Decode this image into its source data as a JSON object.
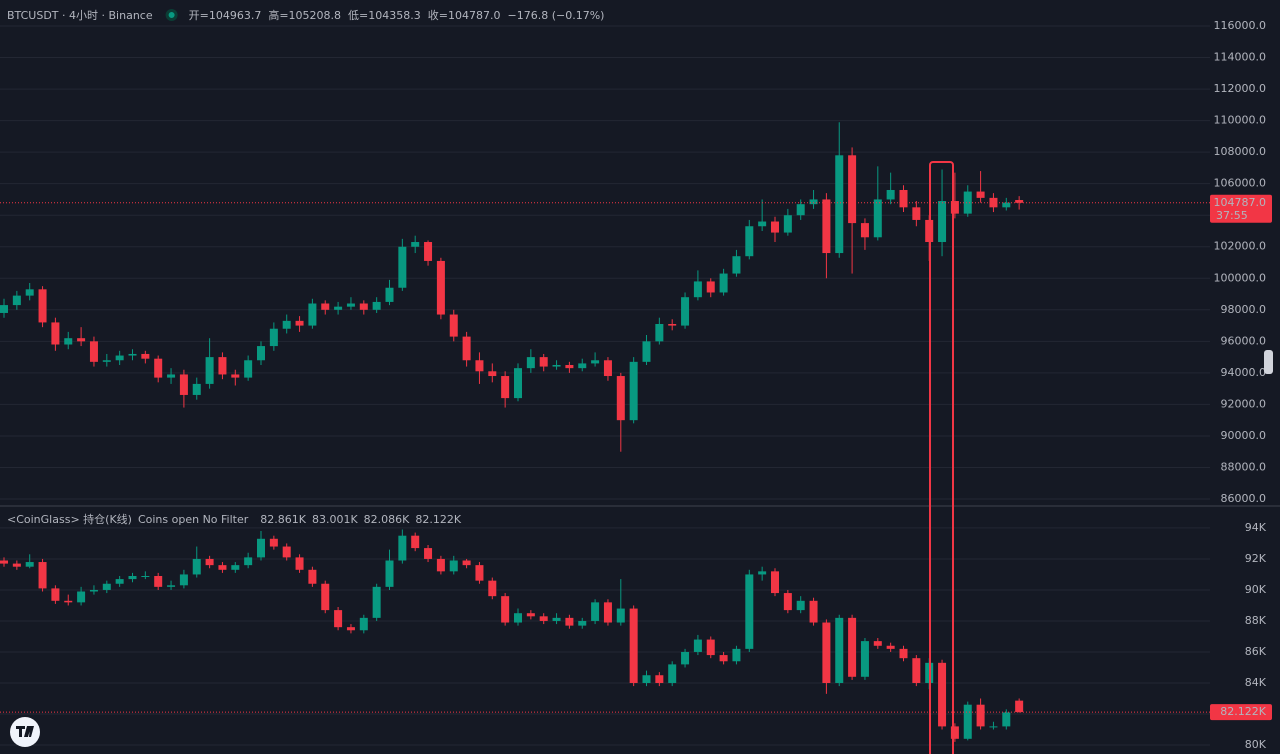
{
  "chart_data": [
    {
      "type": "candlestick",
      "title": "BTCUSDT · 4小时 · Binance",
      "header_labels": [
        "开=",
        "高=",
        "低=",
        "收="
      ],
      "header_values": [
        "104963.7",
        "105208.8",
        "104358.3",
        "104787.0"
      ],
      "change": "−176.8 (−0.17%)",
      "up_color": "#089981",
      "down_color": "#f23645",
      "ylim": [
        85620,
        117650
      ],
      "yticks": [
        {
          "value": 86000,
          "label": "86000.0"
        },
        {
          "value": 88000,
          "label": "88000.0"
        },
        {
          "value": 90000,
          "label": "90000.0"
        },
        {
          "value": 92000,
          "label": "92000.0"
        },
        {
          "value": 94000,
          "label": "94000.0"
        },
        {
          "value": 96000,
          "label": "96000.0"
        },
        {
          "value": 98000,
          "label": "98000.0"
        },
        {
          "value": 100000,
          "label": "100000.0"
        },
        {
          "value": 102000,
          "label": "102000.0"
        },
        {
          "value": 104000,
          "label": "104000.0"
        },
        {
          "value": 106000,
          "label": "106000.0"
        },
        {
          "value": 108000,
          "label": "108000.0"
        },
        {
          "value": 110000,
          "label": "110000.0"
        },
        {
          "value": 112000,
          "label": "112000.0"
        },
        {
          "value": 114000,
          "label": "114000.0"
        },
        {
          "value": 116000,
          "label": "116000.0"
        }
      ],
      "last_price": {
        "value": 104787.0,
        "label": "104787.0"
      },
      "countdown": "37:55",
      "candles": [
        [
          97800,
          98700,
          97500,
          98300
        ],
        [
          98300,
          99200,
          98000,
          98900
        ],
        [
          98900,
          99700,
          98600,
          99300
        ],
        [
          99300,
          99500,
          96900,
          97200
        ],
        [
          97200,
          97500,
          95400,
          95800
        ],
        [
          95800,
          96600,
          95500,
          96200
        ],
        [
          96200,
          96900,
          95700,
          96000
        ],
        [
          96000,
          96300,
          94400,
          94700
        ],
        [
          94700,
          95200,
          94400,
          94800
        ],
        [
          94800,
          95400,
          94500,
          95100
        ],
        [
          95100,
          95500,
          94800,
          95200
        ],
        [
          95200,
          95400,
          94600,
          94900
        ],
        [
          94900,
          95100,
          93400,
          93700
        ],
        [
          93700,
          94300,
          93300,
          93900
        ],
        [
          93900,
          94200,
          91800,
          92600
        ],
        [
          92600,
          93700,
          92300,
          93300
        ],
        [
          93300,
          96200,
          93000,
          95000
        ],
        [
          95000,
          95300,
          93600,
          93900
        ],
        [
          93900,
          94200,
          93200,
          93700
        ],
        [
          93700,
          95100,
          93500,
          94800
        ],
        [
          94800,
          96000,
          94500,
          95700
        ],
        [
          95700,
          97200,
          95400,
          96800
        ],
        [
          96800,
          97700,
          96500,
          97300
        ],
        [
          97300,
          97600,
          96600,
          97000
        ],
        [
          97000,
          98700,
          96800,
          98400
        ],
        [
          98400,
          98600,
          97700,
          98000
        ],
        [
          98000,
          98500,
          97700,
          98200
        ],
        [
          98200,
          98800,
          98000,
          98400
        ],
        [
          98400,
          98600,
          97700,
          98000
        ],
        [
          98000,
          98800,
          97800,
          98500
        ],
        [
          98500,
          99900,
          98300,
          99400
        ],
        [
          99400,
          102500,
          99200,
          102000
        ],
        [
          102000,
          102700,
          101600,
          102300
        ],
        [
          102300,
          102400,
          100800,
          101100
        ],
        [
          101100,
          101300,
          97400,
          97700
        ],
        [
          97700,
          98000,
          96000,
          96300
        ],
        [
          96300,
          96600,
          94400,
          94800
        ],
        [
          94800,
          95300,
          93300,
          94100
        ],
        [
          94100,
          94600,
          93400,
          93800
        ],
        [
          93800,
          94100,
          91800,
          92400
        ],
        [
          92400,
          94600,
          92200,
          94300
        ],
        [
          94300,
          95500,
          94000,
          95000
        ],
        [
          95000,
          95200,
          94100,
          94400
        ],
        [
          94400,
          94800,
          94200,
          94500
        ],
        [
          94500,
          94700,
          94000,
          94300
        ],
        [
          94300,
          94900,
          94100,
          94600
        ],
        [
          94600,
          95300,
          94400,
          94800
        ],
        [
          94800,
          95000,
          93500,
          93800
        ],
        [
          93800,
          94000,
          89000,
          91000
        ],
        [
          91000,
          95000,
          90800,
          94700
        ],
        [
          94700,
          96400,
          94500,
          96000
        ],
        [
          96000,
          97500,
          95800,
          97100
        ],
        [
          97100,
          97400,
          96700,
          97000
        ],
        [
          97000,
          99100,
          96800,
          98800
        ],
        [
          98800,
          100500,
          98600,
          99800
        ],
        [
          99800,
          100000,
          98800,
          99100
        ],
        [
          99100,
          100600,
          98900,
          100300
        ],
        [
          100300,
          101800,
          100100,
          101400
        ],
        [
          101400,
          103700,
          101200,
          103300
        ],
        [
          103300,
          105000,
          103000,
          103600
        ],
        [
          103600,
          103900,
          102300,
          102900
        ],
        [
          102900,
          104400,
          102700,
          104000
        ],
        [
          104000,
          105000,
          103700,
          104700
        ],
        [
          104700,
          105600,
          104400,
          105000
        ],
        [
          105000,
          105400,
          100000,
          101600
        ],
        [
          101600,
          109900,
          101300,
          107800
        ],
        [
          107800,
          108300,
          100300,
          103500
        ],
        [
          103500,
          103800,
          101800,
          102600
        ],
        [
          102600,
          107100,
          102400,
          105000
        ],
        [
          105000,
          106700,
          104700,
          105600
        ],
        [
          105600,
          105900,
          104200,
          104500
        ],
        [
          104500,
          104900,
          103300,
          103700
        ],
        [
          103700,
          104000,
          101100,
          102300
        ],
        [
          102300,
          106900,
          101400,
          104900
        ],
        [
          104900,
          106700,
          103800,
          104100
        ],
        [
          104100,
          105900,
          103900,
          105500
        ],
        [
          105500,
          106800,
          104800,
          105100
        ],
        [
          105100,
          105400,
          104200,
          104500
        ],
        [
          104500,
          105100,
          104300,
          104800
        ],
        [
          104963.7,
          105208.8,
          104358.3,
          104787.0
        ]
      ]
    },
    {
      "type": "candlestick",
      "title": "<CoinGlass> 持仓(K线)",
      "subtitle": "Coins open No Filter",
      "header_values": [
        "82.861K",
        "83.001K",
        "82.086K",
        "82.122K"
      ],
      "up_color": "#089981",
      "down_color": "#f23645",
      "ylim": [
        79420,
        95350
      ],
      "yticks": [
        {
          "value": 80000,
          "label": "80K"
        },
        {
          "value": 82000,
          "label": "82K"
        },
        {
          "value": 84000,
          "label": "84K"
        },
        {
          "value": 86000,
          "label": "86K"
        },
        {
          "value": 88000,
          "label": "88K"
        },
        {
          "value": 90000,
          "label": "90K"
        },
        {
          "value": 92000,
          "label": "92K"
        },
        {
          "value": 94000,
          "label": "94K"
        }
      ],
      "last_price": {
        "value": 82122,
        "label": "82.122K"
      },
      "candles": [
        [
          91900,
          92100,
          91500,
          91700
        ],
        [
          91700,
          91900,
          91300,
          91500
        ],
        [
          91500,
          92300,
          91400,
          91800
        ],
        [
          91800,
          92000,
          89900,
          90100
        ],
        [
          90100,
          90300,
          89100,
          89300
        ],
        [
          89300,
          89700,
          89000,
          89200
        ],
        [
          89200,
          90200,
          89000,
          89900
        ],
        [
          89900,
          90300,
          89700,
          90000
        ],
        [
          90000,
          90600,
          89800,
          90400
        ],
        [
          90400,
          90900,
          90200,
          90700
        ],
        [
          90700,
          91100,
          90500,
          90900
        ],
        [
          90900,
          91200,
          90700,
          90900
        ],
        [
          90900,
          91100,
          90000,
          90200
        ],
        [
          90200,
          90600,
          90000,
          90300
        ],
        [
          90300,
          91300,
          90100,
          91000
        ],
        [
          91000,
          92800,
          90800,
          92000
        ],
        [
          92000,
          92200,
          91400,
          91600
        ],
        [
          91600,
          91800,
          91100,
          91300
        ],
        [
          91300,
          91800,
          91100,
          91600
        ],
        [
          91600,
          92400,
          91400,
          92100
        ],
        [
          92100,
          93800,
          91900,
          93300
        ],
        [
          93300,
          93500,
          92600,
          92800
        ],
        [
          92800,
          93000,
          91900,
          92100
        ],
        [
          92100,
          92300,
          91100,
          91300
        ],
        [
          91300,
          91500,
          90200,
          90400
        ],
        [
          90400,
          90600,
          88500,
          88700
        ],
        [
          88700,
          88900,
          87400,
          87600
        ],
        [
          87600,
          87800,
          87200,
          87400
        ],
        [
          87400,
          88400,
          87200,
          88200
        ],
        [
          88200,
          90400,
          88000,
          90200
        ],
        [
          90200,
          92600,
          90000,
          91900
        ],
        [
          91900,
          93900,
          91700,
          93500
        ],
        [
          93500,
          93700,
          92500,
          92700
        ],
        [
          92700,
          92900,
          91800,
          92000
        ],
        [
          92000,
          92200,
          91000,
          91200
        ],
        [
          91200,
          92200,
          91000,
          91900
        ],
        [
          91900,
          92000,
          91400,
          91600
        ],
        [
          91600,
          91800,
          90400,
          90600
        ],
        [
          90600,
          90800,
          89400,
          89600
        ],
        [
          89600,
          89800,
          87700,
          87900
        ],
        [
          87900,
          88800,
          87700,
          88500
        ],
        [
          88500,
          88700,
          88100,
          88300
        ],
        [
          88300,
          88500,
          87800,
          88000
        ],
        [
          88000,
          88500,
          87800,
          88200
        ],
        [
          88200,
          88400,
          87500,
          87700
        ],
        [
          87700,
          88200,
          87500,
          88000
        ],
        [
          88000,
          89400,
          87800,
          89200
        ],
        [
          89200,
          89400,
          87700,
          87900
        ],
        [
          87900,
          90700,
          87700,
          88800
        ],
        [
          88800,
          89000,
          83800,
          84000
        ],
        [
          84000,
          84800,
          83800,
          84500
        ],
        [
          84500,
          84700,
          83800,
          84000
        ],
        [
          84000,
          85400,
          83800,
          85200
        ],
        [
          85200,
          86200,
          85000,
          86000
        ],
        [
          86000,
          87100,
          85800,
          86800
        ],
        [
          86800,
          87000,
          85600,
          85800
        ],
        [
          85800,
          86000,
          85200,
          85400
        ],
        [
          85400,
          86400,
          85200,
          86200
        ],
        [
          86200,
          91300,
          86000,
          91000
        ],
        [
          91000,
          91500,
          90600,
          91200
        ],
        [
          91200,
          91400,
          89600,
          89800
        ],
        [
          89800,
          90000,
          88500,
          88700
        ],
        [
          88700,
          89600,
          88500,
          89300
        ],
        [
          89300,
          89500,
          87700,
          87900
        ],
        [
          87900,
          88100,
          83300,
          84000
        ],
        [
          84000,
          88400,
          83800,
          88200
        ],
        [
          88200,
          88400,
          84200,
          84400
        ],
        [
          84400,
          86900,
          84200,
          86700
        ],
        [
          86700,
          86900,
          86200,
          86400
        ],
        [
          86400,
          86600,
          86000,
          86200
        ],
        [
          86200,
          86400,
          85400,
          85600
        ],
        [
          85600,
          85800,
          83800,
          84000
        ],
        [
          84000,
          85600,
          83600,
          85300
        ],
        [
          85300,
          85500,
          81000,
          81200
        ],
        [
          81200,
          81400,
          80200,
          80400
        ],
        [
          80400,
          82800,
          80300,
          82600
        ],
        [
          82600,
          83000,
          81000,
          81200
        ],
        [
          81200,
          81500,
          81000,
          81200
        ],
        [
          81200,
          82300,
          81000,
          82100
        ],
        [
          82861,
          83001,
          82086,
          82122
        ]
      ]
    }
  ]
}
